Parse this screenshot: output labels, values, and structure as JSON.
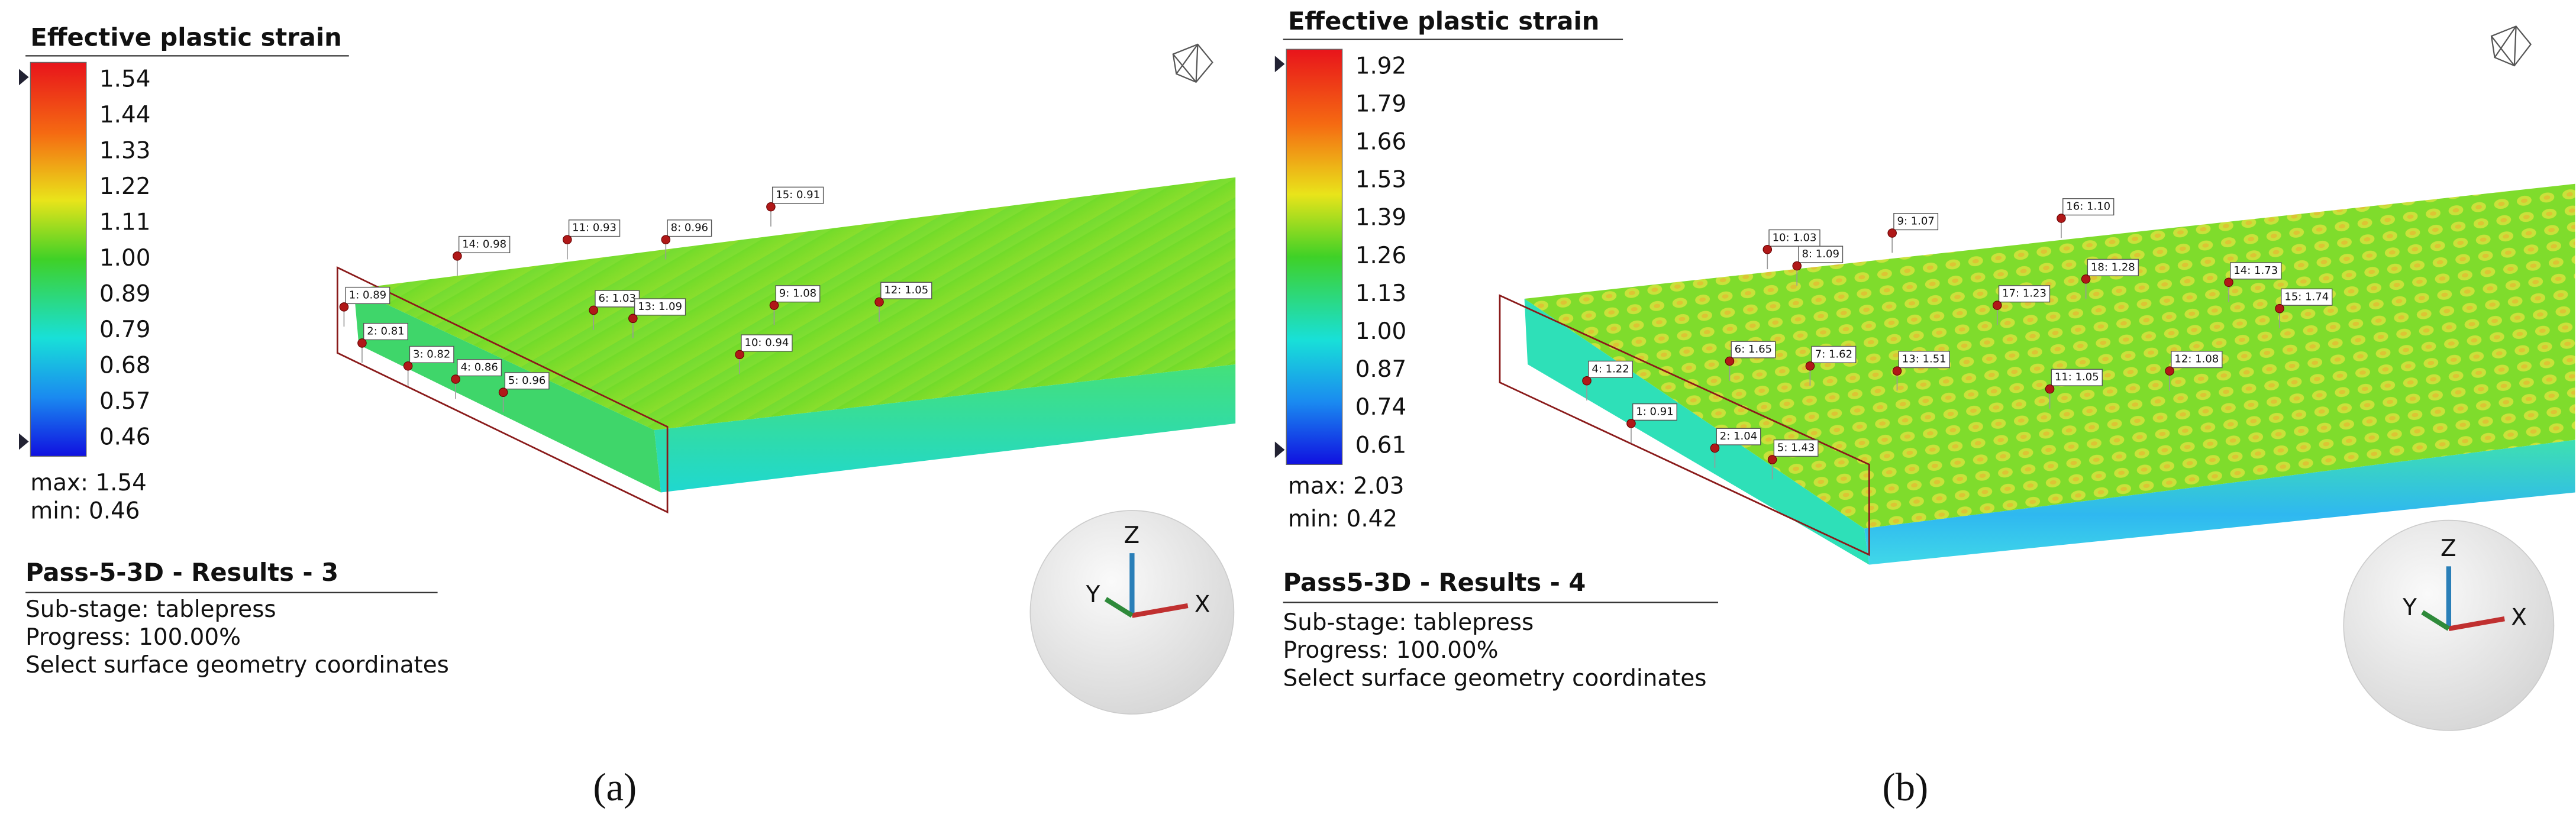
{
  "panels": [
    {
      "legend_title": "Effective plastic strain",
      "scale": [
        "1.54",
        "1.44",
        "1.33",
        "1.22",
        "1.11",
        "1.00",
        "0.89",
        "0.79",
        "0.68",
        "0.57",
        "0.46"
      ],
      "max": "max: 1.54",
      "min": "min:  0.46",
      "probes": [
        "1: 0.89",
        "2: 0.81",
        "3: 0.82",
        "4: 0.86",
        "5: 0.96",
        "6: 1.03",
        "13: 1.09",
        "14: 0.98",
        "11: 0.93",
        "8: 0.96",
        "15: 0.91",
        "9: 1.08",
        "12: 1.05",
        "10: 0.94"
      ],
      "result_title": "Pass-5-3D - Results - 3",
      "substage": "Sub-stage: tablepress",
      "progress": "Progress: 100.00%",
      "hint": "Select surface geometry coordinates",
      "axes": {
        "x": "X",
        "y": "Y",
        "z": "Z"
      },
      "caption": "(a)"
    },
    {
      "legend_title": "Effective plastic strain",
      "scale": [
        "1.92",
        "1.79",
        "1.66",
        "1.53",
        "1.39",
        "1.26",
        "1.13",
        "1.00",
        "0.87",
        "0.74",
        "0.61"
      ],
      "max": "max: 2.03",
      "min": "min:  0.42",
      "probes": [
        "10: 1.03",
        "8: 1.09",
        "9: 1.07",
        "16: 1.10",
        "18: 1.28",
        "17: 1.23",
        "14: 1.73",
        "15: 1.74",
        "6: 1.65",
        "7: 1.62",
        "13: 1.51",
        "12: 1.08",
        "11: 1.05",
        "4: 1.22",
        "1: 0.91",
        "2: 1.04",
        "5: 1.43"
      ],
      "result_title": "Pass5-3D - Results - 4",
      "substage": "Sub-stage: tablepress",
      "progress": "Progress: 100.00%",
      "hint": "Select surface geometry coordinates",
      "axes": {
        "x": "X",
        "y": "Y",
        "z": "Z"
      },
      "caption": "(b)"
    }
  ]
}
